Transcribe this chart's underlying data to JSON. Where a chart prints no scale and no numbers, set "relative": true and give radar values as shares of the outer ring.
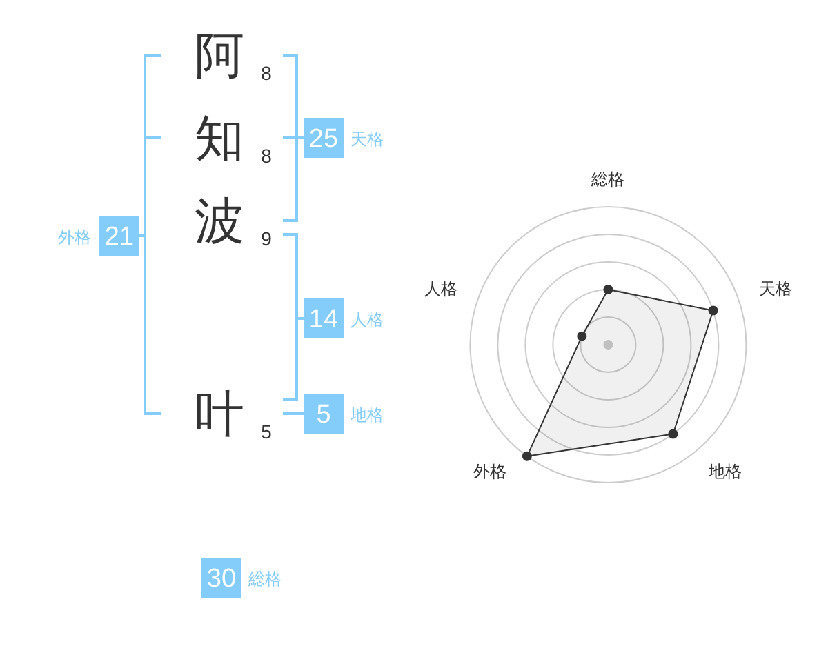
{
  "chart_data": [
    {
      "type": "other",
      "annotations": [
        "阿",
        "8",
        "知",
        "8",
        "波",
        "9",
        "叶",
        "5",
        "25",
        "天格",
        "14",
        "人格",
        "5",
        "地格",
        "21",
        "外格",
        "30",
        "総格"
      ]
    },
    {
      "type": "radar",
      "categories": [
        "総格",
        "天格",
        "地格",
        "外格",
        "人格"
      ],
      "relative": true,
      "grid": true,
      "marker": "circle",
      "series": [
        {
          "color": "#333333",
          "values": [
            0.4,
            0.8,
            0.8,
            1.0,
            0.2
          ]
        }
      ]
    }
  ]
}
